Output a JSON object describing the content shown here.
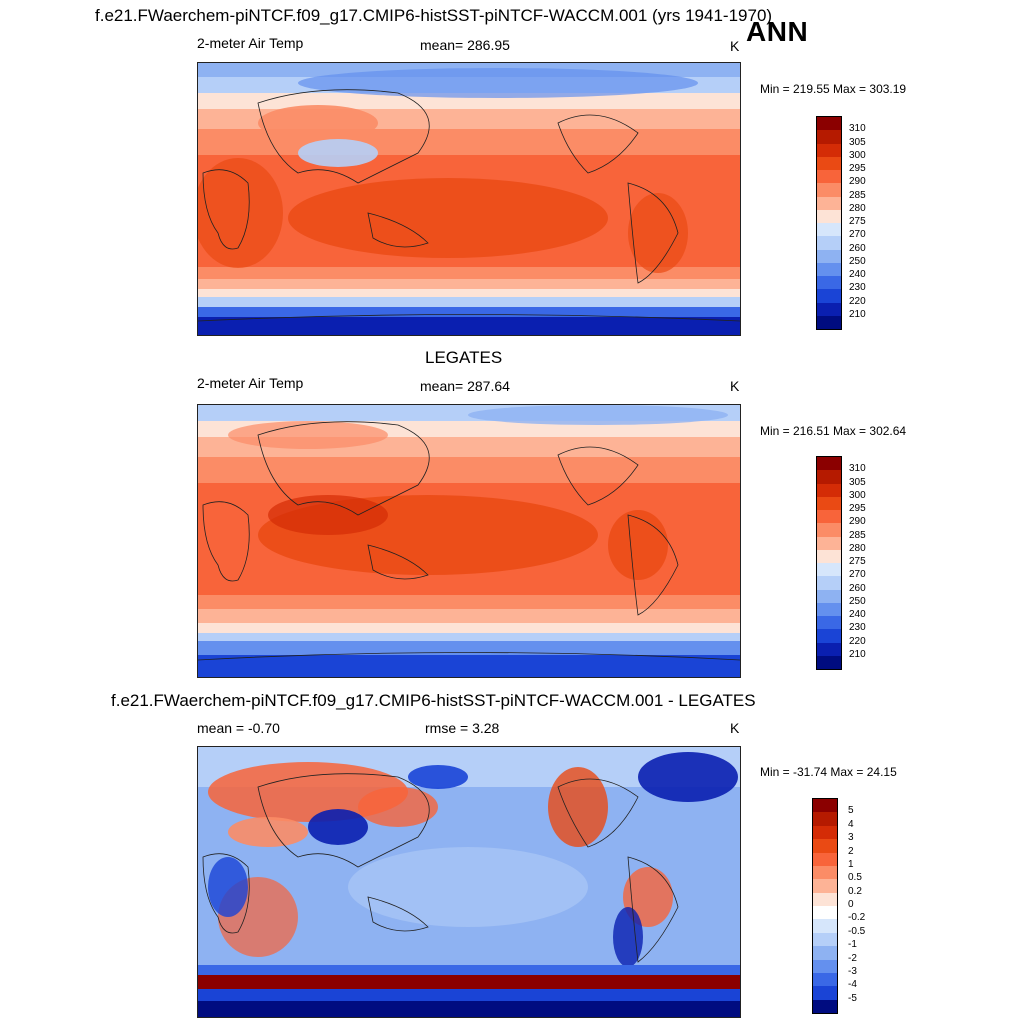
{
  "title": "f.e21.FWaerchem-piNTCF.f09_g17.CMIP6-histSST-piNTCF-WACCM.001 (yrs 1941-1970)",
  "season": "ANN",
  "panels": [
    {
      "heading": "",
      "variable": "2-meter Air Temp",
      "stat_text": "mean= 286.95",
      "units": "K",
      "minmax": "Min = 219.55 Max = 303.19",
      "kind": "abs"
    },
    {
      "heading": "LEGATES",
      "variable": "2-meter Air Temp",
      "stat_text": "mean= 287.64",
      "units": "K",
      "minmax": "Min = 216.51 Max = 302.64",
      "kind": "abs"
    },
    {
      "heading": "f.e21.FWaerchem-piNTCF.f09_g17.CMIP6-histSST-piNTCF-WACCM.001 - LEGATES",
      "variable": "mean =  -0.70",
      "stat_text": "rmse =   3.28",
      "units": "K",
      "minmax": "Min = -31.74 Max =  24.15",
      "kind": "diff"
    }
  ],
  "colorbars": {
    "abs": {
      "labels": [
        "310",
        "305",
        "300",
        "295",
        "290",
        "285",
        "280",
        "275",
        "270",
        "260",
        "250",
        "240",
        "230",
        "220",
        "210"
      ],
      "colors": [
        "#8b0000",
        "#b51a00",
        "#d42c06",
        "#ea4a14",
        "#f8643a",
        "#fb8c66",
        "#fdb396",
        "#fde3d6",
        "#d6e6fb",
        "#b5cff8",
        "#8eb2f2",
        "#6490ee",
        "#3a68e6",
        "#1a44d6",
        "#0a1fb0",
        "#000c80"
      ]
    },
    "diff": {
      "labels": [
        "5",
        "4",
        "3",
        "2",
        "1",
        "0.5",
        "0.2",
        "0",
        "-0.2",
        "-0.5",
        "-1",
        "-2",
        "-3",
        "-4",
        "-5"
      ],
      "colors": [
        "#8b0000",
        "#b51a00",
        "#d42c06",
        "#ea4a14",
        "#f8643a",
        "#fb8c66",
        "#fdb396",
        "#fde3d6",
        "#ffffff",
        "#d6e6fb",
        "#b5cff8",
        "#8eb2f2",
        "#6490ee",
        "#3a68e6",
        "#1a44d6",
        "#000c80"
      ]
    }
  }
}
